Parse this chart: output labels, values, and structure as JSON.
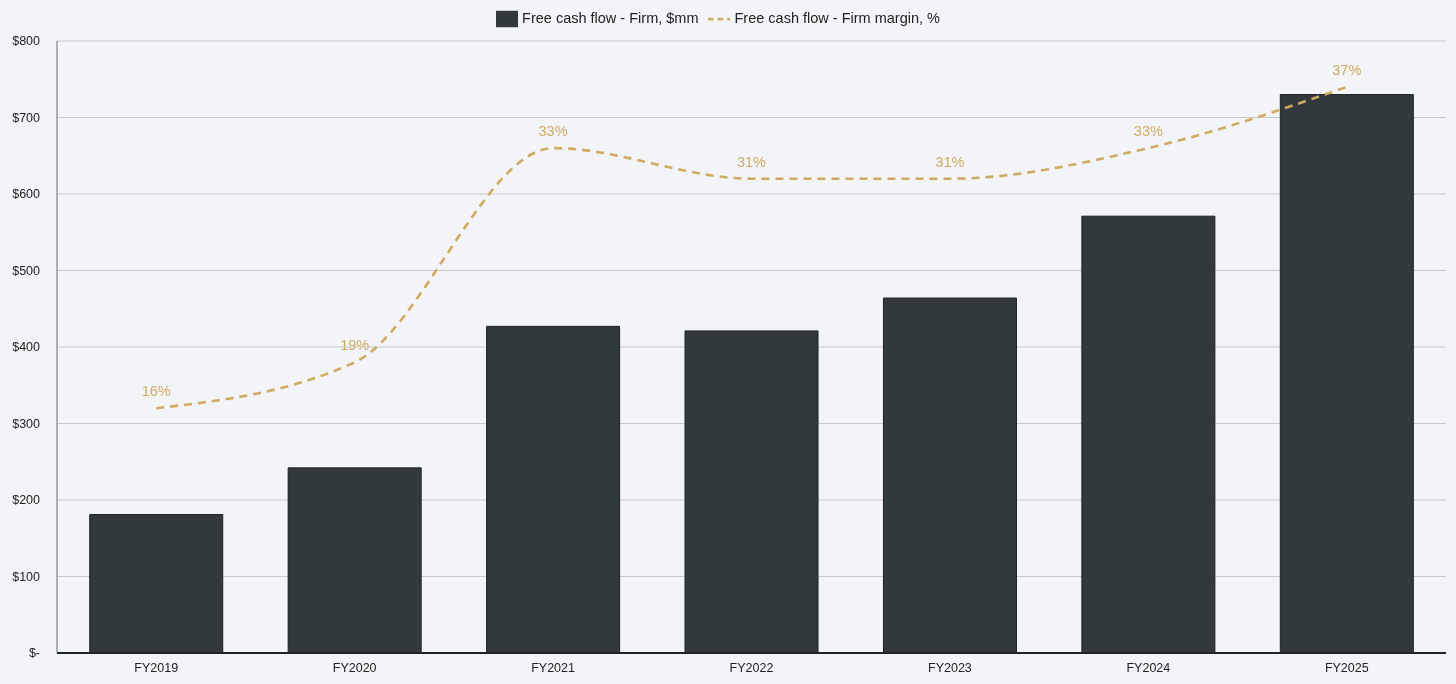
{
  "chart_data": {
    "type": "bar",
    "categories": [
      "FY2019",
      "FY2020",
      "FY2021",
      "FY2022",
      "FY2023",
      "FY2024",
      "FY2025"
    ],
    "series": [
      {
        "name": "Free cash flow - Firm, $mm",
        "color": "#32393c",
        "values": [
          181,
          242,
          427,
          421,
          464,
          571,
          730
        ]
      },
      {
        "name": "Free cash flow - Firm margin, %",
        "type": "line",
        "axis": "y2",
        "color": "#cfab62",
        "line_style": "dashed",
        "values": [
          16,
          19,
          33,
          31,
          31,
          33,
          37
        ],
        "value_labels": [
          "16%",
          "19%",
          "33%",
          "31%",
          "31%",
          "33%",
          "37%"
        ]
      }
    ],
    "ylim": [
      0,
      800
    ],
    "yticks": [
      {
        "value": 0,
        "label": "$-"
      },
      {
        "value": 100,
        "label": "$100"
      },
      {
        "value": 200,
        "label": "$200"
      },
      {
        "value": 300,
        "label": "$300"
      },
      {
        "value": 400,
        "label": "$400"
      },
      {
        "value": 500,
        "label": "$500"
      },
      {
        "value": 600,
        "label": "$600"
      },
      {
        "value": 700,
        "label": "$700"
      },
      {
        "value": 800,
        "label": "$800"
      }
    ],
    "y2lim": [
      0,
      40
    ],
    "grid": "y",
    "legend": "top"
  }
}
